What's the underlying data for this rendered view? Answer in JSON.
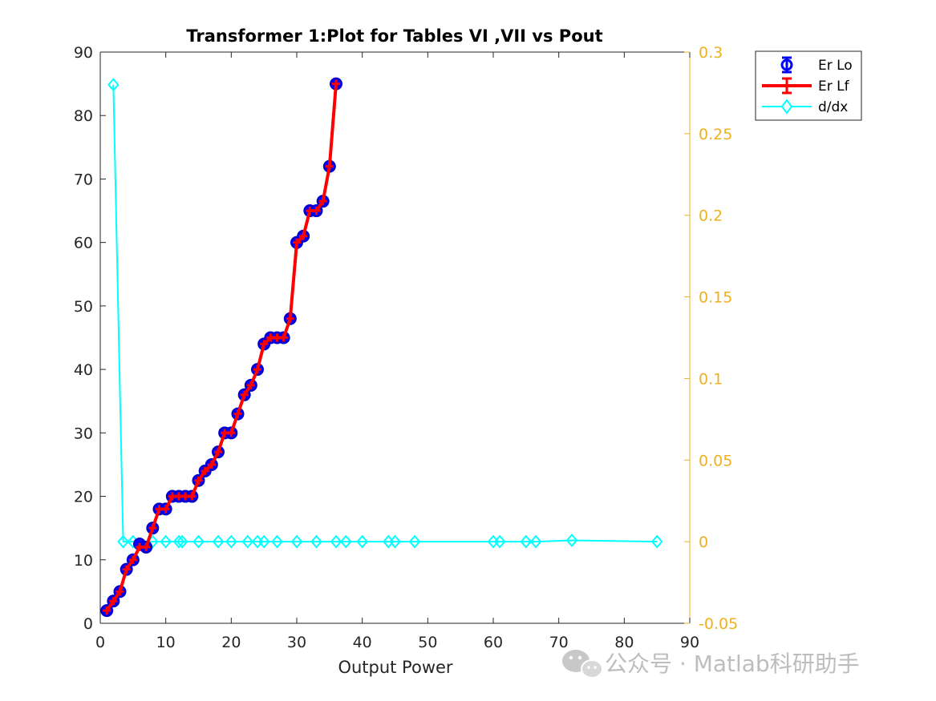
{
  "chart_data": {
    "type": "line",
    "title": "Transformer 1:Plot for Tables VI ,VII vs Pout",
    "xlabel": "Output Power",
    "ylabel": "",
    "xlim": [
      0,
      90
    ],
    "ylim": [
      0,
      90
    ],
    "y2lim": [
      -0.05,
      0.3
    ],
    "x_ticks": [
      "0",
      "10",
      "20",
      "30",
      "40",
      "50",
      "60",
      "70",
      "80",
      "90"
    ],
    "y_ticks": [
      "0",
      "10",
      "20",
      "30",
      "40",
      "50",
      "60",
      "70",
      "80",
      "90"
    ],
    "y2_ticks": [
      "-0.05",
      "0",
      "0.05",
      "0.1",
      "0.15",
      "0.2",
      "0.25",
      "0.3"
    ],
    "grid": false,
    "legend_position": "top-right",
    "colors": {
      "er_lo": "#0000ff",
      "er_lf": "#ff0000",
      "ddx": "#00ffff",
      "right_axis": "#edb120"
    },
    "series": [
      {
        "name": "Er Lo",
        "axis": "left",
        "x": [
          1,
          2,
          3,
          4,
          5,
          6,
          7,
          8,
          9,
          10,
          11,
          12,
          13,
          14,
          15,
          16,
          17,
          18,
          19,
          20,
          21,
          22,
          23,
          24,
          25,
          26,
          27,
          28,
          29,
          30,
          31,
          32,
          33,
          34,
          35,
          36
        ],
        "y": [
          2,
          3.5,
          5,
          8.5,
          10,
          12.5,
          12,
          15,
          18,
          18,
          20,
          20,
          20,
          20,
          22.5,
          24,
          25,
          27,
          30,
          30,
          33,
          36,
          37.5,
          40,
          44,
          45,
          45,
          45,
          48,
          60,
          61,
          65,
          65,
          66.5,
          72,
          85
        ]
      },
      {
        "name": "Er Lf",
        "axis": "left",
        "x": [
          1,
          2,
          3,
          4,
          5,
          6,
          7,
          8,
          9,
          10,
          11,
          12,
          13,
          14,
          15,
          16,
          17,
          18,
          19,
          20,
          21,
          22,
          23,
          24,
          25,
          26,
          27,
          28,
          29,
          30,
          31,
          32,
          33,
          34,
          35,
          36
        ],
        "y": [
          2,
          3.5,
          5,
          8.5,
          10,
          12,
          12,
          15,
          18,
          18,
          20,
          20,
          20,
          20,
          22.5,
          24,
          25,
          27,
          30,
          30,
          33,
          36,
          37.5,
          40,
          44,
          45,
          45,
          45,
          48,
          60,
          61,
          65,
          65,
          66.5,
          72,
          85
        ]
      },
      {
        "name": "d/dx",
        "axis": "right",
        "x": [
          2,
          3.5,
          5,
          8,
          10,
          12,
          12.5,
          15,
          18,
          20,
          22.5,
          24,
          25,
          27,
          30,
          33,
          36,
          37.5,
          40,
          44,
          45,
          48,
          60,
          61,
          65,
          66.5,
          72,
          85
        ],
        "y": [
          0.28,
          0,
          0,
          0,
          0,
          0,
          0,
          0,
          0,
          0,
          0,
          0,
          0,
          0,
          0,
          0,
          0,
          0,
          0,
          0,
          0,
          0,
          0,
          0,
          0,
          0,
          0.0008,
          0
        ]
      }
    ]
  },
  "watermark": {
    "text": "公众号 · Matlab科研助手"
  }
}
